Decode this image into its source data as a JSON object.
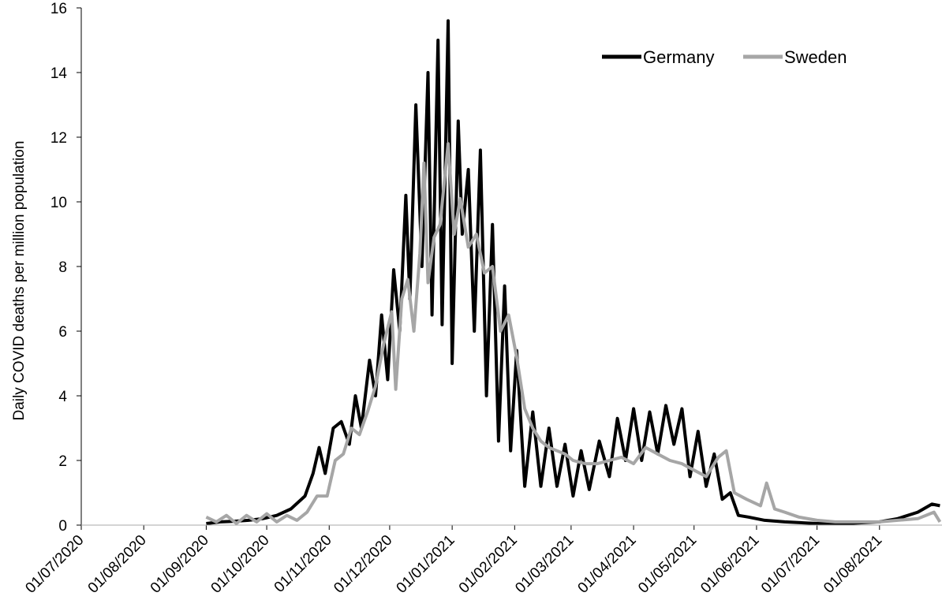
{
  "chart_data": {
    "type": "line",
    "title": "",
    "ylabel": "Daily COVID deaths per million population",
    "xlabel": "",
    "ylim": [
      0,
      16
    ],
    "yticks": [
      "0",
      "2",
      "4",
      "6",
      "8",
      "10",
      "12",
      "14",
      "16"
    ],
    "xticks": [
      "01/07/2020",
      "01/08/2020",
      "01/09/2020",
      "01/10/2020",
      "01/11/2020",
      "01/12/2020",
      "01/01/2021",
      "01/02/2021",
      "01/03/2021",
      "01/04/2021",
      "01/05/2021",
      "01/06/2021",
      "01/07/2021",
      "01/08/2021"
    ],
    "xrange": [
      "01/07/2020",
      "31/08/2021"
    ],
    "legend_position": "top-right",
    "grid": false,
    "series": [
      {
        "name": "Germany",
        "color": "#000000",
        "points": [
          [
            "01/09/2020",
            0.05
          ],
          [
            "08/09/2020",
            0.1
          ],
          [
            "15/09/2020",
            0.12
          ],
          [
            "22/09/2020",
            0.15
          ],
          [
            "29/09/2020",
            0.2
          ],
          [
            "06/10/2020",
            0.3
          ],
          [
            "13/10/2020",
            0.5
          ],
          [
            "20/10/2020",
            0.9
          ],
          [
            "24/10/2020",
            1.6
          ],
          [
            "27/10/2020",
            2.4
          ],
          [
            "30/10/2020",
            1.6
          ],
          [
            "03/11/2020",
            3.0
          ],
          [
            "07/11/2020",
            3.2
          ],
          [
            "11/11/2020",
            2.5
          ],
          [
            "14/11/2020",
            4.0
          ],
          [
            "17/11/2020",
            3.0
          ],
          [
            "21/11/2020",
            5.1
          ],
          [
            "24/11/2020",
            4.0
          ],
          [
            "27/11/2020",
            6.5
          ],
          [
            "30/11/2020",
            4.5
          ],
          [
            "03/12/2020",
            7.9
          ],
          [
            "06/12/2020",
            6.0
          ],
          [
            "09/12/2020",
            10.2
          ],
          [
            "11/12/2020",
            7.0
          ],
          [
            "14/12/2020",
            13.0
          ],
          [
            "17/12/2020",
            8.0
          ],
          [
            "20/12/2020",
            14.0
          ],
          [
            "22/12/2020",
            6.5
          ],
          [
            "25/12/2020",
            15.0
          ],
          [
            "27/12/2020",
            6.2
          ],
          [
            "30/12/2020",
            15.6
          ],
          [
            "01/01/2021",
            5.0
          ],
          [
            "04/01/2021",
            12.5
          ],
          [
            "06/01/2021",
            9.0
          ],
          [
            "09/01/2021",
            11.0
          ],
          [
            "12/01/2021",
            6.0
          ],
          [
            "15/01/2021",
            11.6
          ],
          [
            "18/01/2021",
            4.0
          ],
          [
            "21/01/2021",
            9.3
          ],
          [
            "24/01/2021",
            2.6
          ],
          [
            "27/01/2021",
            7.4
          ],
          [
            "30/01/2021",
            2.3
          ],
          [
            "02/02/2021",
            5.4
          ],
          [
            "06/02/2021",
            1.2
          ],
          [
            "10/02/2021",
            3.5
          ],
          [
            "14/02/2021",
            1.2
          ],
          [
            "18/02/2021",
            3.0
          ],
          [
            "22/02/2021",
            1.2
          ],
          [
            "26/02/2021",
            2.5
          ],
          [
            "02/03/2021",
            0.9
          ],
          [
            "06/03/2021",
            2.3
          ],
          [
            "10/03/2021",
            1.1
          ],
          [
            "15/03/2021",
            2.6
          ],
          [
            "20/03/2021",
            1.5
          ],
          [
            "24/03/2021",
            3.3
          ],
          [
            "28/03/2021",
            2.0
          ],
          [
            "01/04/2021",
            3.6
          ],
          [
            "05/04/2021",
            2.0
          ],
          [
            "09/04/2021",
            3.5
          ],
          [
            "13/04/2021",
            2.2
          ],
          [
            "17/04/2021",
            3.7
          ],
          [
            "21/04/2021",
            2.5
          ],
          [
            "25/04/2021",
            3.6
          ],
          [
            "29/04/2021",
            1.5
          ],
          [
            "03/05/2021",
            2.9
          ],
          [
            "07/05/2021",
            1.2
          ],
          [
            "11/05/2021",
            2.2
          ],
          [
            "15/05/2021",
            0.8
          ],
          [
            "19/05/2021",
            1.0
          ],
          [
            "23/05/2021",
            0.3
          ],
          [
            "28/05/2021",
            0.25
          ],
          [
            "05/06/2021",
            0.15
          ],
          [
            "15/06/2021",
            0.1
          ],
          [
            "01/07/2021",
            0.05
          ],
          [
            "15/07/2021",
            0.05
          ],
          [
            "01/08/2021",
            0.1
          ],
          [
            "10/08/2021",
            0.2
          ],
          [
            "20/08/2021",
            0.4
          ],
          [
            "27/08/2021",
            0.65
          ],
          [
            "31/08/2021",
            0.6
          ]
        ]
      },
      {
        "name": "Sweden",
        "color": "#a6a6a6",
        "points": [
          [
            "01/09/2020",
            0.25
          ],
          [
            "06/09/2020",
            0.1
          ],
          [
            "11/09/2020",
            0.3
          ],
          [
            "16/09/2020",
            0.05
          ],
          [
            "21/09/2020",
            0.3
          ],
          [
            "26/09/2020",
            0.1
          ],
          [
            "01/10/2020",
            0.35
          ],
          [
            "06/10/2020",
            0.1
          ],
          [
            "11/10/2020",
            0.3
          ],
          [
            "16/10/2020",
            0.15
          ],
          [
            "21/10/2020",
            0.4
          ],
          [
            "26/10/2020",
            0.9
          ],
          [
            "31/10/2020",
            0.9
          ],
          [
            "04/11/2020",
            2.0
          ],
          [
            "08/11/2020",
            2.2
          ],
          [
            "12/11/2020",
            3.0
          ],
          [
            "16/11/2020",
            2.8
          ],
          [
            "20/11/2020",
            3.5
          ],
          [
            "24/11/2020",
            4.3
          ],
          [
            "28/11/2020",
            5.6
          ],
          [
            "02/12/2020",
            6.6
          ],
          [
            "04/12/2020",
            4.2
          ],
          [
            "07/12/2020",
            7.0
          ],
          [
            "10/12/2020",
            7.6
          ],
          [
            "13/12/2020",
            6.0
          ],
          [
            "16/12/2020",
            8.4
          ],
          [
            "18/12/2020",
            11.2
          ],
          [
            "20/12/2020",
            7.5
          ],
          [
            "23/12/2020",
            8.9
          ],
          [
            "26/12/2020",
            9.3
          ],
          [
            "30/12/2020",
            11.8
          ],
          [
            "02/01/2021",
            9.0
          ],
          [
            "05/01/2021",
            10.1
          ],
          [
            "09/01/2021",
            8.6
          ],
          [
            "13/01/2021",
            9.0
          ],
          [
            "17/01/2021",
            7.8
          ],
          [
            "21/01/2021",
            8.0
          ],
          [
            "25/01/2021",
            6.0
          ],
          [
            "29/01/2021",
            6.5
          ],
          [
            "02/02/2021",
            5.2
          ],
          [
            "06/02/2021",
            3.6
          ],
          [
            "10/02/2021",
            3.0
          ],
          [
            "14/02/2021",
            2.6
          ],
          [
            "18/02/2021",
            2.4
          ],
          [
            "22/02/2021",
            2.3
          ],
          [
            "26/02/2021",
            2.2
          ],
          [
            "02/03/2021",
            2.0
          ],
          [
            "08/03/2021",
            1.9
          ],
          [
            "14/03/2021",
            1.9
          ],
          [
            "20/03/2021",
            2.0
          ],
          [
            "26/03/2021",
            2.1
          ],
          [
            "01/04/2021",
            1.9
          ],
          [
            "07/04/2021",
            2.4
          ],
          [
            "13/04/2021",
            2.2
          ],
          [
            "19/04/2021",
            2.0
          ],
          [
            "25/04/2021",
            1.9
          ],
          [
            "01/05/2021",
            1.7
          ],
          [
            "07/05/2021",
            1.5
          ],
          [
            "13/05/2021",
            2.1
          ],
          [
            "17/05/2021",
            2.3
          ],
          [
            "21/05/2021",
            1.0
          ],
          [
            "27/05/2021",
            0.8
          ],
          [
            "03/06/2021",
            0.6
          ],
          [
            "06/06/2021",
            1.3
          ],
          [
            "10/06/2021",
            0.5
          ],
          [
            "15/06/2021",
            0.4
          ],
          [
            "22/06/2021",
            0.25
          ],
          [
            "01/07/2021",
            0.15
          ],
          [
            "10/07/2021",
            0.1
          ],
          [
            "20/07/2021",
            0.1
          ],
          [
            "01/08/2021",
            0.1
          ],
          [
            "10/08/2021",
            0.15
          ],
          [
            "20/08/2021",
            0.2
          ],
          [
            "28/08/2021",
            0.4
          ],
          [
            "31/08/2021",
            0.1
          ]
        ]
      }
    ]
  }
}
